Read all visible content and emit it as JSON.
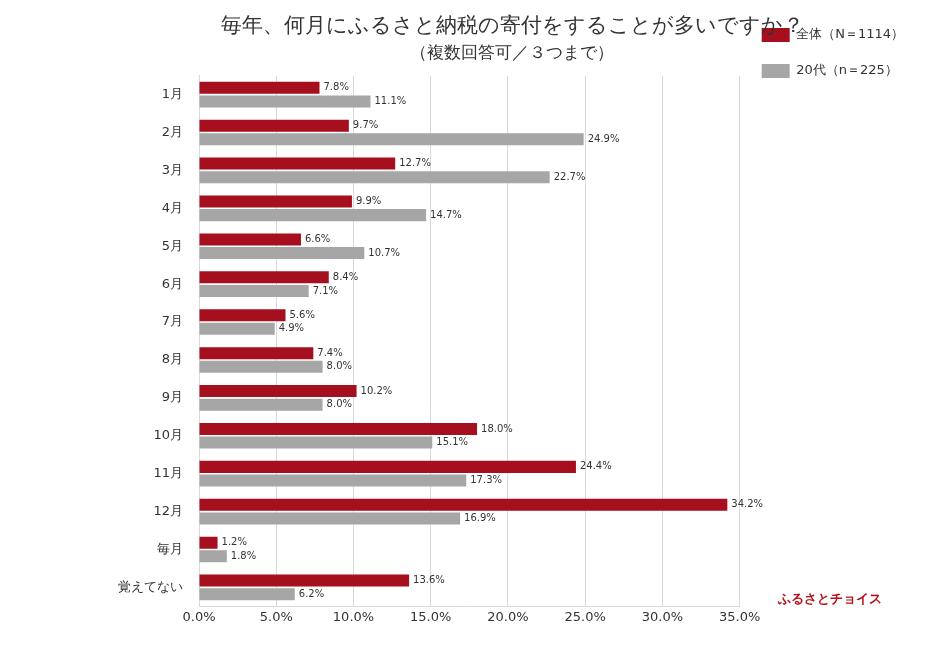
{
  "chart_data": {
    "type": "bar",
    "orientation": "horizontal",
    "title": "毎年、何月にふるさと納税の寄付をすることが多いですか？",
    "subtitle": "（複数回答可／３つまで）",
    "annotations": [
      "ふるさとチョイス"
    ],
    "categories": [
      "1月",
      "2月",
      "3月",
      "4月",
      "5月",
      "6月",
      "7月",
      "8月",
      "9月",
      "10月",
      "11月",
      "12月",
      "毎月",
      "覚えてない"
    ],
    "series": [
      {
        "name": "全体（N＝1114）",
        "color": "#a50f1e",
        "values": [
          7.8,
          9.7,
          12.7,
          9.9,
          6.6,
          8.4,
          5.6,
          7.4,
          10.2,
          18.0,
          24.4,
          34.2,
          1.2,
          13.6
        ],
        "value_labels": [
          "7.8%",
          "9.7%",
          "12.7%",
          "9.9%",
          "6.6%",
          "8.4%",
          "5.6%",
          "7.4%",
          "10.2%",
          "18.0%",
          "24.4%",
          "34.2%",
          "1.2%",
          "13.6%"
        ]
      },
      {
        "name": "20代（n＝225）",
        "color": "#a6a6a6",
        "values": [
          11.1,
          24.9,
          22.7,
          14.7,
          10.7,
          7.1,
          4.9,
          8.0,
          8.0,
          15.1,
          17.3,
          16.9,
          1.8,
          6.2
        ],
        "value_labels": [
          "11.1%",
          "24.9%",
          "22.7%",
          "14.7%",
          "10.7%",
          "7.1%",
          "4.9%",
          "8.0%",
          "8.0%",
          "15.1%",
          "17.3%",
          "16.9%",
          "1.8%",
          "6.2%"
        ]
      }
    ],
    "xlim": [
      0,
      35
    ],
    "xticks": [
      {
        "value": 0,
        "label": "0.0%"
      },
      {
        "value": 5,
        "label": "5.0%"
      },
      {
        "value": 10,
        "label": "10.0%"
      },
      {
        "value": 15,
        "label": "15.0%"
      },
      {
        "value": 20,
        "label": "20.0%"
      },
      {
        "value": 25,
        "label": "25.0%"
      },
      {
        "value": 30,
        "label": "30.0%"
      },
      {
        "value": 35,
        "label": "35.0%"
      }
    ],
    "grid": true,
    "legend": "right",
    "data_labels": true
  }
}
